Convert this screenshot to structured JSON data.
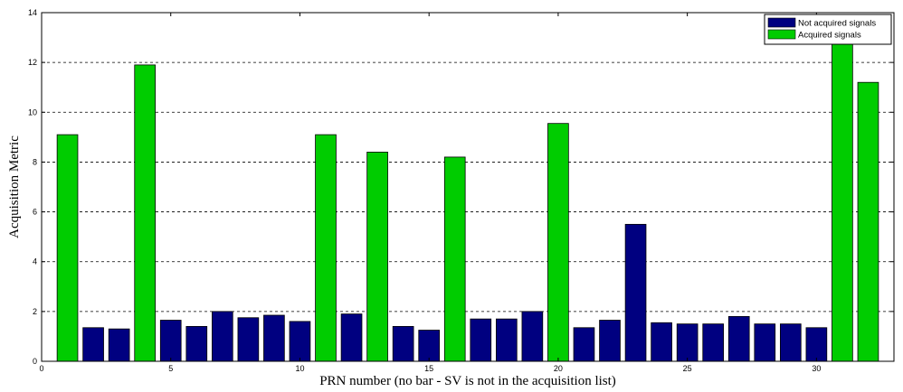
{
  "chart_data": {
    "type": "bar",
    "title": "",
    "xlabel": "PRN number (no bar - SV is not in the acquisition list)",
    "ylabel": "Acquisition Metric",
    "xlim": [
      0,
      33
    ],
    "ylim": [
      0,
      14
    ],
    "xticks": [
      0,
      5,
      10,
      15,
      20,
      25,
      30
    ],
    "yticks": [
      0,
      2,
      4,
      6,
      8,
      10,
      12,
      14
    ],
    "grid": "horizontal dashed",
    "legend_position": "top-right",
    "series": [
      {
        "name": "Not acquired signals",
        "color": "#000080",
        "x": [
          2,
          3,
          5,
          6,
          7,
          8,
          9,
          10,
          12,
          14,
          15,
          17,
          18,
          19,
          21,
          22,
          23,
          24,
          25,
          26,
          27,
          28,
          29,
          30
        ],
        "values": [
          1.35,
          1.3,
          1.65,
          1.4,
          2.0,
          1.75,
          1.85,
          1.6,
          1.9,
          1.4,
          1.25,
          1.7,
          1.7,
          2.0,
          1.35,
          1.65,
          5.5,
          1.55,
          1.5,
          1.5,
          1.8,
          1.5,
          1.5,
          1.35
        ]
      },
      {
        "name": "Acquired signals",
        "color": "#00cc00",
        "x": [
          1,
          4,
          11,
          13,
          16,
          20,
          31,
          32
        ],
        "values": [
          9.1,
          11.9,
          9.1,
          8.4,
          8.2,
          9.55,
          12.8,
          11.2
        ]
      }
    ]
  }
}
